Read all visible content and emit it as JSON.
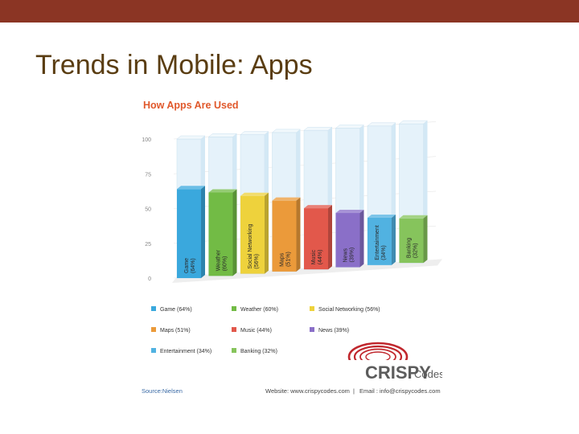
{
  "slide": {
    "title": "Trends in Mobile: Apps"
  },
  "colors": {
    "topbar": "#8b3524",
    "title_text": "#5a3d12",
    "chart_title": "#e0582b"
  },
  "chart_data": {
    "type": "bar",
    "title": "How Apps Are Used",
    "ylim": [
      0,
      100
    ],
    "yticks": [
      0,
      25,
      50,
      75,
      100
    ],
    "categories": [
      "Game",
      "Weather",
      "Social Networking",
      "Maps",
      "Music",
      "News",
      "Entertainment",
      "Banking"
    ],
    "bar_labels": [
      "(64%)",
      "(60%)",
      "(56%)",
      "(51%)",
      "(44%)",
      "(39%)",
      "(34%)",
      "(32%)"
    ],
    "values": [
      64,
      60,
      56,
      51,
      44,
      39,
      34,
      32
    ],
    "bar_colors": [
      "#3aa8dd",
      "#72bb45",
      "#eed23c",
      "#eb9a3a",
      "#e2584b",
      "#8a6fc8",
      "#51b2e1",
      "#86c45c"
    ],
    "legend": [
      {
        "label": "Game (64%)",
        "color": "#3aa8dd"
      },
      {
        "label": "Weather (60%)",
        "color": "#72bb45"
      },
      {
        "label": "Social Networking (56%)",
        "color": "#eed23c"
      },
      {
        "label": "Maps (51%)",
        "color": "#eb9a3a"
      },
      {
        "label": "Music (44%)",
        "color": "#e2584b"
      },
      {
        "label": "News (39%)",
        "color": "#8a6fc8"
      },
      {
        "label": "Entertainment (34%)",
        "color": "#51b2e1"
      },
      {
        "label": "Banking (32%)",
        "color": "#86c45c"
      }
    ],
    "source": "Source:Nielsen",
    "website": "Website: www.crispycodes.com",
    "separator": "|",
    "email": "Email : info@crispycodes.com",
    "logo_main": "CRISPY",
    "logo_sub": "Codes"
  }
}
